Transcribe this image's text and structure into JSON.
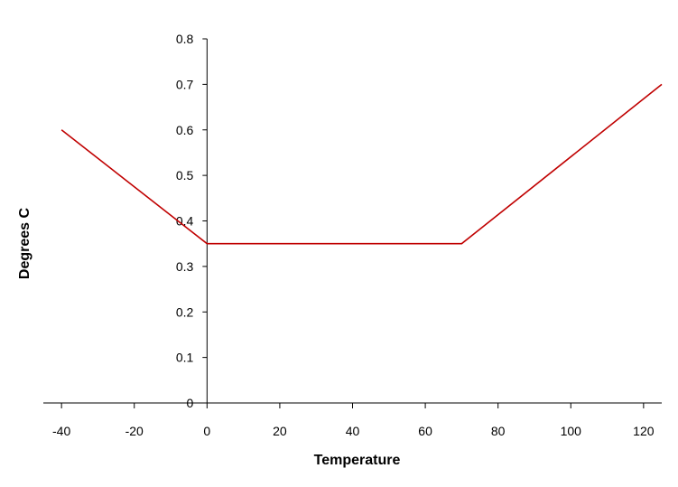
{
  "chart_data": {
    "type": "line",
    "title": "",
    "xlabel": "Temperature",
    "ylabel": "Degrees C",
    "xlim": [
      -45,
      125
    ],
    "ylim": [
      0,
      0.8
    ],
    "x_ticks": [
      -40,
      -20,
      0,
      20,
      40,
      60,
      80,
      100,
      120
    ],
    "x_tick_labels": [
      "-40",
      "-20",
      "0",
      "20",
      "40",
      "60",
      "80",
      "100",
      "120"
    ],
    "y_ticks": [
      0,
      0.1,
      0.2,
      0.3,
      0.4,
      0.5,
      0.6,
      0.7,
      0.8
    ],
    "y_tick_labels": [
      "0",
      "0.1",
      "0.2",
      "0.3",
      "0.4",
      "0.5",
      "0.6",
      "0.7",
      "0.8"
    ],
    "grid": false,
    "legend": "none",
    "series": [
      {
        "color": "#c00000",
        "x": [
          -40,
          0,
          70,
          125
        ],
        "y": [
          0.6,
          0.35,
          0.35,
          0.7
        ]
      }
    ]
  }
}
